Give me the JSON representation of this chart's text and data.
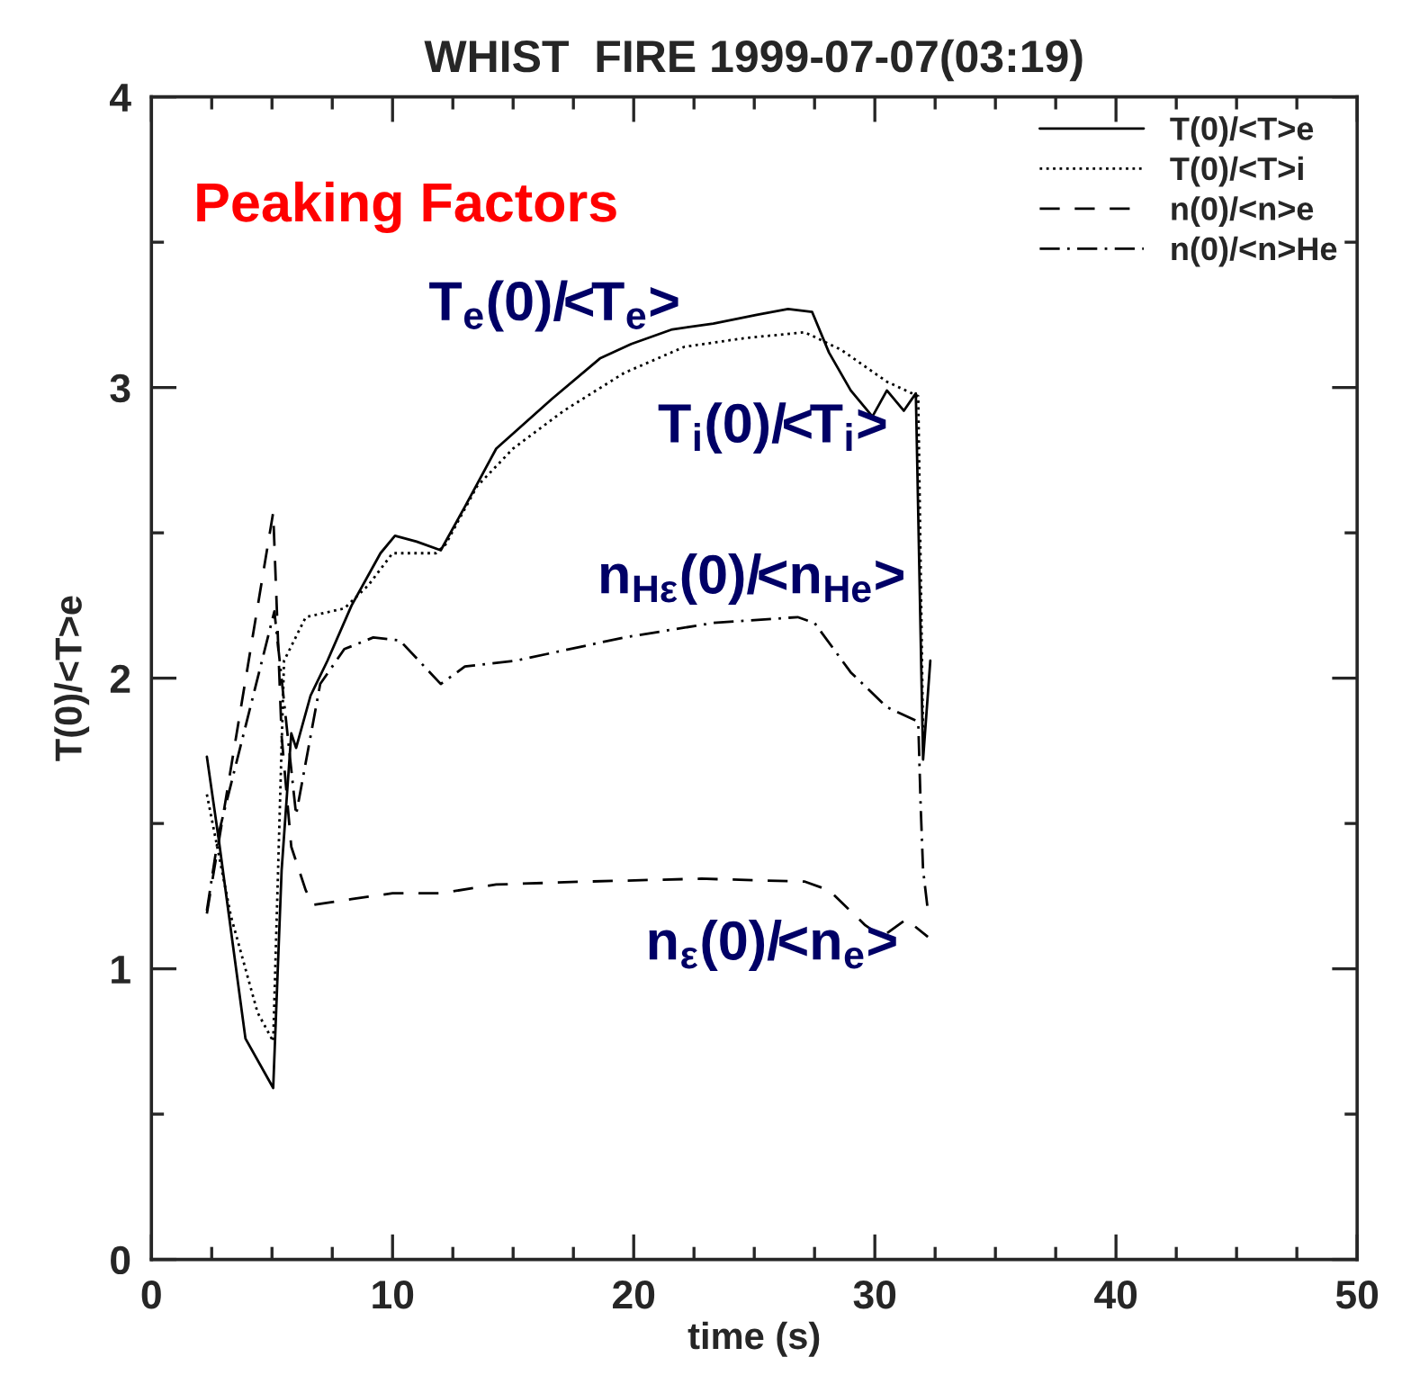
{
  "chart_data": {
    "type": "line",
    "title": "WHIST  FIRE 1999-07-07(03:19)",
    "xlabel": "time (s)",
    "ylabel": "T(0)/<T>e",
    "xlim": [
      0,
      50
    ],
    "xticks": [
      0,
      10,
      20,
      30,
      40,
      50
    ],
    "ylim": [
      0,
      4
    ],
    "yticks": [
      0,
      1,
      2,
      3,
      4
    ],
    "grid": false,
    "legend": "top right",
    "marker": "none",
    "annotations": [
      "Peaking Factors",
      "T$_{e}$(0)/<T$_{e}$>",
      "T$_{i}$(0)/<T$_{i}$>",
      "n$_{Hε}$(0)/<n$_{He}$>",
      "n$_{ε}$(0)/<n$_{e}$>"
    ],
    "series": [
      {
        "name": "T(0)/<T>e",
        "color": "#000000",
        "line_style": "solid",
        "x": [
          2.3,
          2.8,
          3.9,
          5.05,
          5.4,
          5.8,
          6.0,
          6.6,
          7.3,
          8.3,
          9.5,
          10.1,
          11.0,
          12.0,
          13.0,
          14.3,
          16.6,
          18.6,
          19.9,
          21.6,
          23.3,
          25.1,
          26.4,
          27.4,
          28.1,
          29.0,
          29.9,
          30.5,
          31.2,
          31.7,
          32.0,
          32.3
        ],
        "values": [
          1.73,
          1.44,
          0.76,
          0.59,
          1.34,
          1.81,
          1.76,
          1.94,
          2.06,
          2.25,
          2.43,
          2.49,
          2.47,
          2.44,
          2.59,
          2.79,
          2.96,
          3.1,
          3.15,
          3.2,
          3.22,
          3.25,
          3.27,
          3.26,
          3.12,
          2.99,
          2.9,
          2.99,
          2.92,
          2.98,
          1.72,
          2.06
        ]
      },
      {
        "name": "T(0)/<T>i",
        "color": "#000000",
        "line_style": "dotted",
        "x": [
          2.3,
          3.3,
          4.4,
          5.05,
          5.5,
          6.4,
          8.0,
          9.0,
          10.0,
          11.8,
          12.2,
          13.5,
          15.0,
          17.1,
          19.6,
          22.1,
          24.6,
          27.1,
          28.6,
          30.5,
          31.8,
          32.0
        ],
        "values": [
          1.6,
          1.18,
          0.85,
          0.75,
          2.06,
          2.21,
          2.24,
          2.32,
          2.43,
          2.43,
          2.46,
          2.66,
          2.79,
          2.92,
          3.05,
          3.14,
          3.17,
          3.19,
          3.13,
          3.02,
          2.97,
          1.8
        ]
      },
      {
        "name": "n(0)/<n>e",
        "color": "#000000",
        "line_style": "dashed",
        "x": [
          2.3,
          5.05,
          5.4,
          5.8,
          6.4,
          6.7,
          8.3,
          10.0,
          12.0,
          14.3,
          18.0,
          22.8,
          27.1,
          28.1,
          29.6,
          30.3,
          31.3,
          32.2
        ],
        "values": [
          1.19,
          2.57,
          1.8,
          1.42,
          1.27,
          1.22,
          1.24,
          1.26,
          1.26,
          1.29,
          1.3,
          1.31,
          1.3,
          1.27,
          1.15,
          1.11,
          1.17,
          1.11
        ]
      },
      {
        "name": "n(0)/<n>He",
        "color": "#000000",
        "line_style": "dashdot",
        "x": [
          2.3,
          2.8,
          5.1,
          6.0,
          7.0,
          8.0,
          9.2,
          10.3,
          12.0,
          13.0,
          15.1,
          19.6,
          23.3,
          26.8,
          27.5,
          29.0,
          30.5,
          31.8,
          31.9,
          32.0,
          32.2
        ],
        "values": [
          1.2,
          1.47,
          2.23,
          1.53,
          1.98,
          2.1,
          2.14,
          2.13,
          1.98,
          2.04,
          2.06,
          2.14,
          2.19,
          2.21,
          2.19,
          2.02,
          1.9,
          1.85,
          1.56,
          1.34,
          1.2
        ]
      }
    ]
  }
}
